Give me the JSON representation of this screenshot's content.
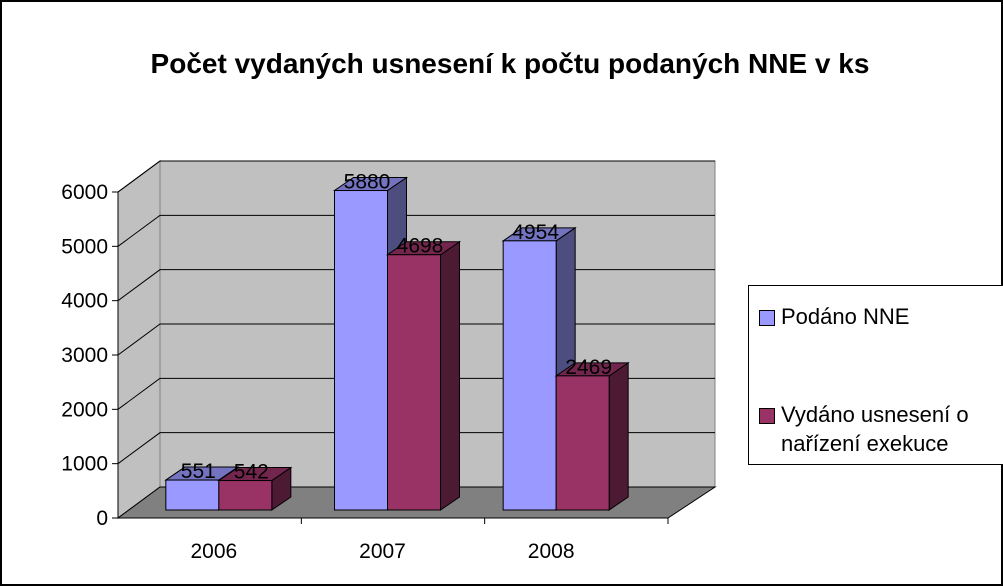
{
  "chart_data": {
    "type": "bar3d",
    "title": "Počet vydaných usnesení k počtu podaných NNE v ks",
    "categories": [
      "2006",
      "2007",
      "2008"
    ],
    "series": [
      {
        "name": "Podáno NNE",
        "color": "#9999ff",
        "values": [
          551,
          5880,
          4954
        ]
      },
      {
        "name": "Vydáno usnesení o nařízení exekuce",
        "color": "#993366",
        "values": [
          542,
          4698,
          2469
        ]
      }
    ],
    "ylim": [
      0,
      6000
    ],
    "yticks": [
      0,
      1000,
      2000,
      3000,
      4000,
      5000,
      6000
    ],
    "grid": true,
    "legend": "right"
  }
}
